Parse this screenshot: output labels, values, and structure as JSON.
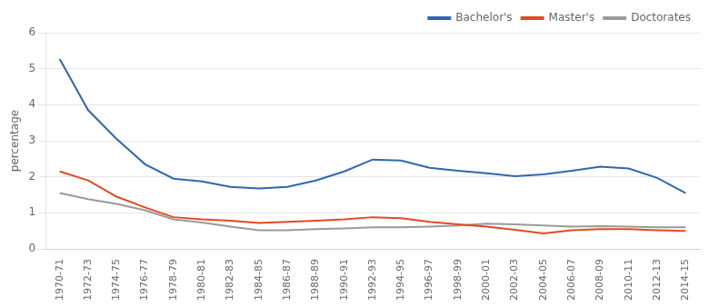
{
  "chart_data": {
    "type": "line",
    "categories": [
      "1970-71",
      "1972-73",
      "1974-75",
      "1976-77",
      "1978-79",
      "1980-81",
      "1982-83",
      "1984-85",
      "1986-87",
      "1988-89",
      "1990-91",
      "1992-93",
      "1994-95",
      "1996-97",
      "1998-99",
      "2000-01",
      "2002-03",
      "2004-05",
      "2006-07",
      "2008-09",
      "2010-11",
      "2012-13",
      "2014-15"
    ],
    "series": [
      {
        "name": "Bachelor's",
        "color": "#2f67b0",
        "values": [
          5.27,
          3.85,
          3.05,
          2.35,
          1.95,
          1.87,
          1.72,
          1.68,
          1.72,
          1.9,
          2.15,
          2.48,
          2.45,
          2.25,
          2.17,
          2.1,
          2.02,
          2.07,
          2.17,
          2.28,
          2.23,
          1.97,
          1.55
        ]
      },
      {
        "name": "Master's",
        "color": "#e04a22",
        "values": [
          2.15,
          1.9,
          1.45,
          1.15,
          0.88,
          0.82,
          0.78,
          0.72,
          0.75,
          0.78,
          0.82,
          0.88,
          0.85,
          0.75,
          0.68,
          0.62,
          0.53,
          0.43,
          0.52,
          0.55,
          0.55,
          0.52,
          0.5
        ]
      },
      {
        "name": "Doctorates",
        "color": "#9a9a9a",
        "values": [
          1.55,
          1.38,
          1.25,
          1.07,
          0.82,
          0.73,
          0.62,
          0.52,
          0.52,
          0.55,
          0.57,
          0.6,
          0.6,
          0.62,
          0.65,
          0.7,
          0.68,
          0.65,
          0.62,
          0.63,
          0.62,
          0.6,
          0.6
        ]
      }
    ],
    "ylabel": "percentage",
    "ylim": [
      0,
      6
    ],
    "yticks": [
      0,
      1,
      2,
      3,
      4,
      5,
      6
    ],
    "grid": true,
    "legend": "upper right"
  }
}
